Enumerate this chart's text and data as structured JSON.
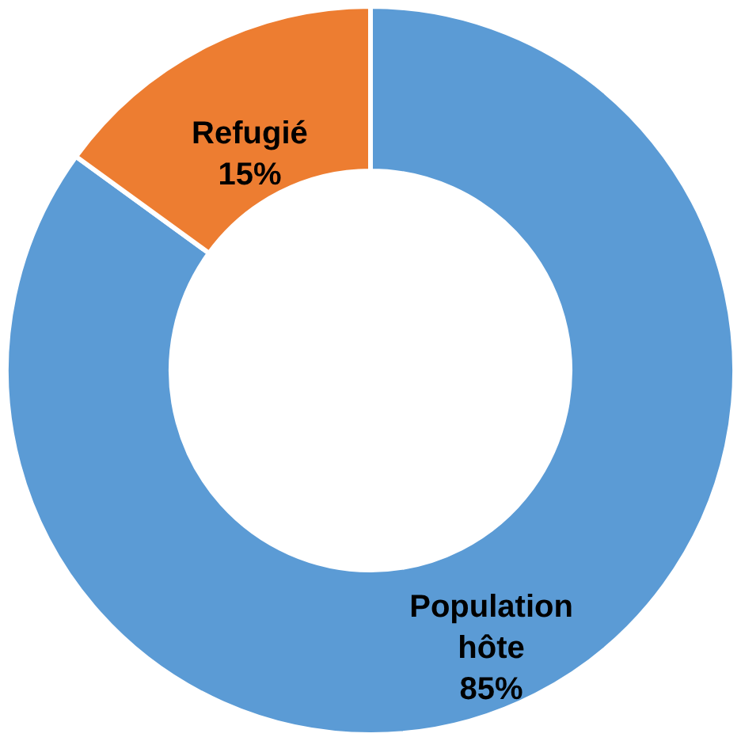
{
  "chart_data": {
    "type": "donut",
    "categories": [
      "Population hôte",
      "Refugié"
    ],
    "values": [
      85,
      15
    ],
    "colors": [
      "#5b9bd5",
      "#ed7d31"
    ],
    "data_labels": true,
    "value_labels": [
      "85%",
      "15%"
    ],
    "legend": false
  }
}
